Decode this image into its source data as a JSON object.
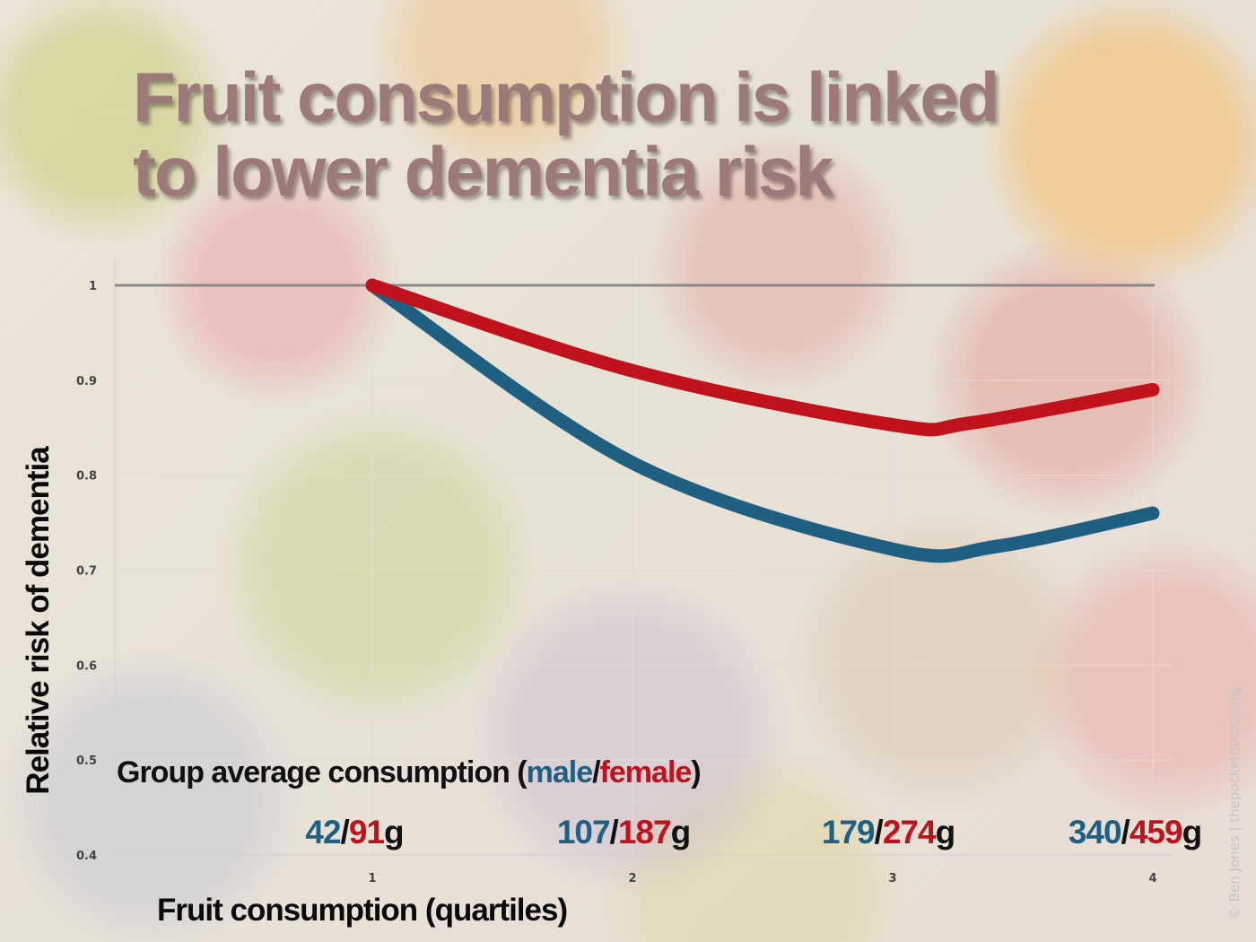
{
  "chart_data": {
    "type": "line",
    "title_lines": [
      "Fruit consumption is linked",
      "to lower dementia risk"
    ],
    "xlabel": "Fruit consumption (quartiles)",
    "ylabel": "Relative risk of dementia",
    "x": [
      1,
      2,
      3,
      4
    ],
    "x_tick_labels": [
      "1",
      "2",
      "3",
      "4"
    ],
    "y_tick_labels": [
      "0.4",
      "0.5",
      "0.6",
      "0.7",
      "0.8",
      "0.9",
      "1"
    ],
    "ylim": [
      0.4,
      1.0
    ],
    "reference_line": 1.0,
    "grid": true,
    "series": [
      {
        "key": "female",
        "color": "#c0121c",
        "points": [
          [
            1,
            1.0
          ],
          [
            2,
            0.91
          ],
          [
            3,
            0.853
          ],
          [
            3.3,
            0.855
          ],
          [
            4,
            0.89
          ]
        ]
      },
      {
        "key": "male",
        "color": "#1f5f82",
        "points": [
          [
            1,
            1.0
          ],
          [
            2,
            0.813
          ],
          [
            3,
            0.722
          ],
          [
            3.4,
            0.725
          ],
          [
            4,
            0.76
          ]
        ]
      }
    ],
    "annotation": {
      "prefix": "Group average consumption (",
      "male_word": "male",
      "separator": "/",
      "female_word": "female",
      "suffix": ")",
      "groups": [
        {
          "male": "42",
          "female": "91",
          "unit": "g"
        },
        {
          "male": "107",
          "female": "187",
          "unit": "g"
        },
        {
          "male": "179",
          "female": "274",
          "unit": "g"
        },
        {
          "male": "340",
          "female": "459",
          "unit": "g"
        }
      ]
    },
    "credit": "© Ben Jones | thepocketdoctor.org"
  },
  "colors": {
    "male": "#1f5f82",
    "female": "#c0121c",
    "neutral": "#111111",
    "title": "#9c7a7a",
    "reference": "#8a8a8a",
    "grid": "#dcdcdc"
  }
}
